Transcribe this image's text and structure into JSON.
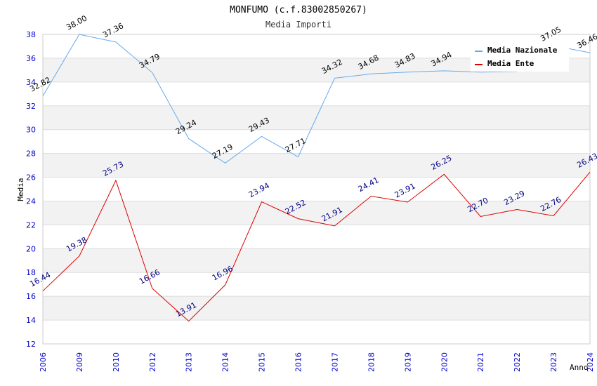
{
  "chart_data": {
    "type": "line",
    "title": "MONFUMO (c.f.83002850267)",
    "subtitle": "Media Importi",
    "xlabel": "Anno",
    "ylabel": "Media",
    "categories": [
      "2006",
      "2009",
      "2010",
      "2012",
      "2013",
      "2014",
      "2015",
      "2016",
      "2017",
      "2018",
      "2019",
      "2020",
      "2021",
      "2022",
      "2023",
      "2024"
    ],
    "ylim": [
      12,
      38
    ],
    "yticks": [
      "12",
      "14",
      "16",
      "18",
      "20",
      "22",
      "24",
      "26",
      "28",
      "30",
      "32",
      "34",
      "36",
      "38"
    ],
    "series": [
      {
        "name": "Media Nazionale",
        "color": "#66aaee",
        "values": [
          32.82,
          38.0,
          37.36,
          34.79,
          29.24,
          27.19,
          29.43,
          27.71,
          34.32,
          34.68,
          34.83,
          34.94,
          34.83,
          34.88,
          37.05,
          36.46
        ],
        "labels": [
          "32.82",
          "38.00",
          "37.36",
          "34.79",
          "29.24",
          "27.19",
          "29.43",
          "27.71",
          "34.32",
          "34.68",
          "34.83",
          "34.94",
          "",
          "",
          "37.05",
          "36.46"
        ]
      },
      {
        "name": "Media Ente",
        "color": "#dd0000",
        "values": [
          16.44,
          19.38,
          25.73,
          16.66,
          13.91,
          16.96,
          23.94,
          22.52,
          21.91,
          24.41,
          23.91,
          26.25,
          22.7,
          23.29,
          22.76,
          26.43
        ],
        "labels": [
          "16.44",
          "19.38",
          "25.73",
          "16.66",
          "13.91",
          "16.96",
          "23.94",
          "22.52",
          "21.91",
          "24.41",
          "23.91",
          "26.25",
          "22.70",
          "23.29",
          "22.76",
          "26.43"
        ]
      }
    ],
    "legend": "top-right",
    "grid": true
  }
}
